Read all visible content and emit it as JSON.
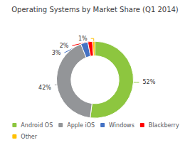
{
  "chart_data": {
    "type": "pie",
    "title": "Operating Systems by Market Share (Q1 2014)",
    "categories": [
      "Android OS",
      "Apple iOS",
      "Windows",
      "Blackberry",
      "Other"
    ],
    "values": [
      52,
      42,
      3,
      2,
      1
    ],
    "value_labels": [
      "52%",
      "42%",
      "3%",
      "2%",
      "1%"
    ],
    "colors": [
      "#8DC63F",
      "#939598",
      "#4472C4",
      "#FF0000",
      "#FFC000"
    ],
    "data_labels": true,
    "legend": "bottom"
  }
}
